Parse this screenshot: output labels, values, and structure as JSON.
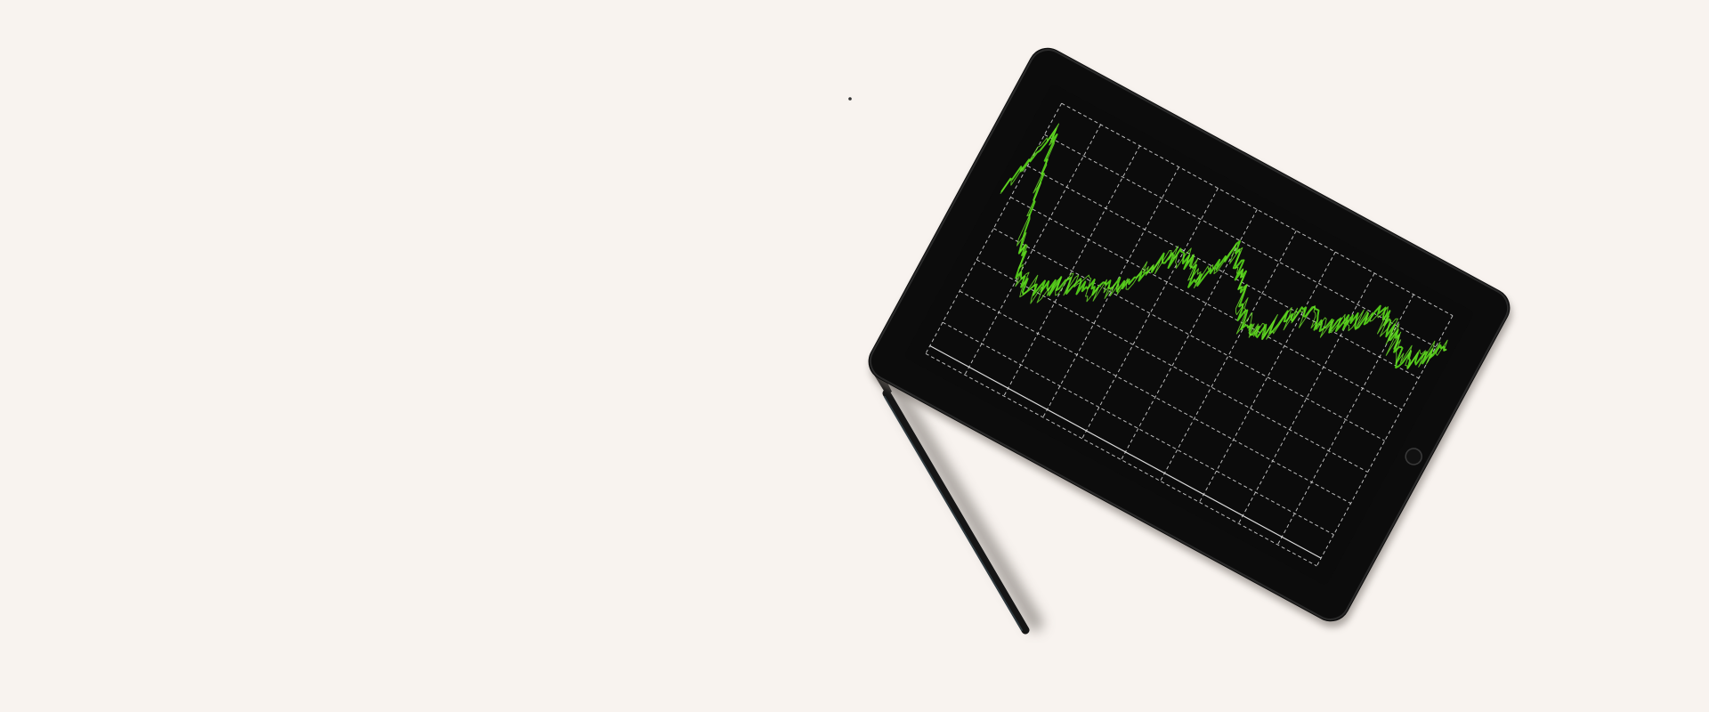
{
  "scene": {
    "background_color": "#f8f3ef",
    "objects": [
      "tablet",
      "stylus-pencil",
      "dust-speck"
    ]
  },
  "tablet": {
    "body_color": "#0c0c0c",
    "screen_color": "#0b0b0b",
    "grid_color": "#d9d9d9",
    "line_color": "#4fc318",
    "home_button_icon": "home-button-icon",
    "trend": [
      0.5,
      0.95,
      0.35,
      0.12,
      0.1,
      0.2,
      0.24,
      0.28,
      0.42,
      0.6,
      0.68,
      0.56,
      0.85,
      0.72,
      0.52,
      0.46,
      0.64,
      0.72,
      0.7,
      0.78,
      0.92,
      0.86,
      0.74,
      0.8,
      0.96
    ]
  },
  "pencil": {
    "color": "#111111",
    "shadow_color": "#9a9590"
  }
}
